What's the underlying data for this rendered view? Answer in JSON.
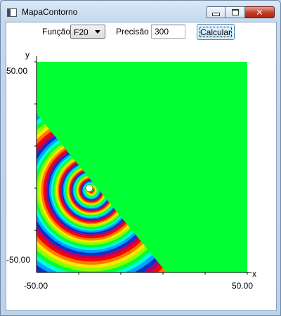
{
  "window": {
    "title": "MapaContorno"
  },
  "titlebar_buttons": {
    "min_icon": "minimize-icon",
    "max_icon": "maximize-icon",
    "close_icon": "close-icon",
    "close_glyph": "✕"
  },
  "toolbar": {
    "function_label": "Função",
    "function_value": "F20",
    "precision_label": "Precisão",
    "precision_value": "300",
    "calculate_label": "Calcular"
  },
  "plot": {
    "x_axis_label": "x",
    "y_axis_label": "y",
    "x_min": "-50.00",
    "x_max": "50.00",
    "y_min": "-50.00",
    "y_max": "50.00",
    "background_color": "#00ff33",
    "ring_colors": [
      "#00ff33",
      "#8cff00",
      "#ffe600",
      "#ff7a00",
      "#ff0000",
      "#b4006a",
      "#0033cc",
      "#00a0ff",
      "#00ffe0"
    ]
  }
}
